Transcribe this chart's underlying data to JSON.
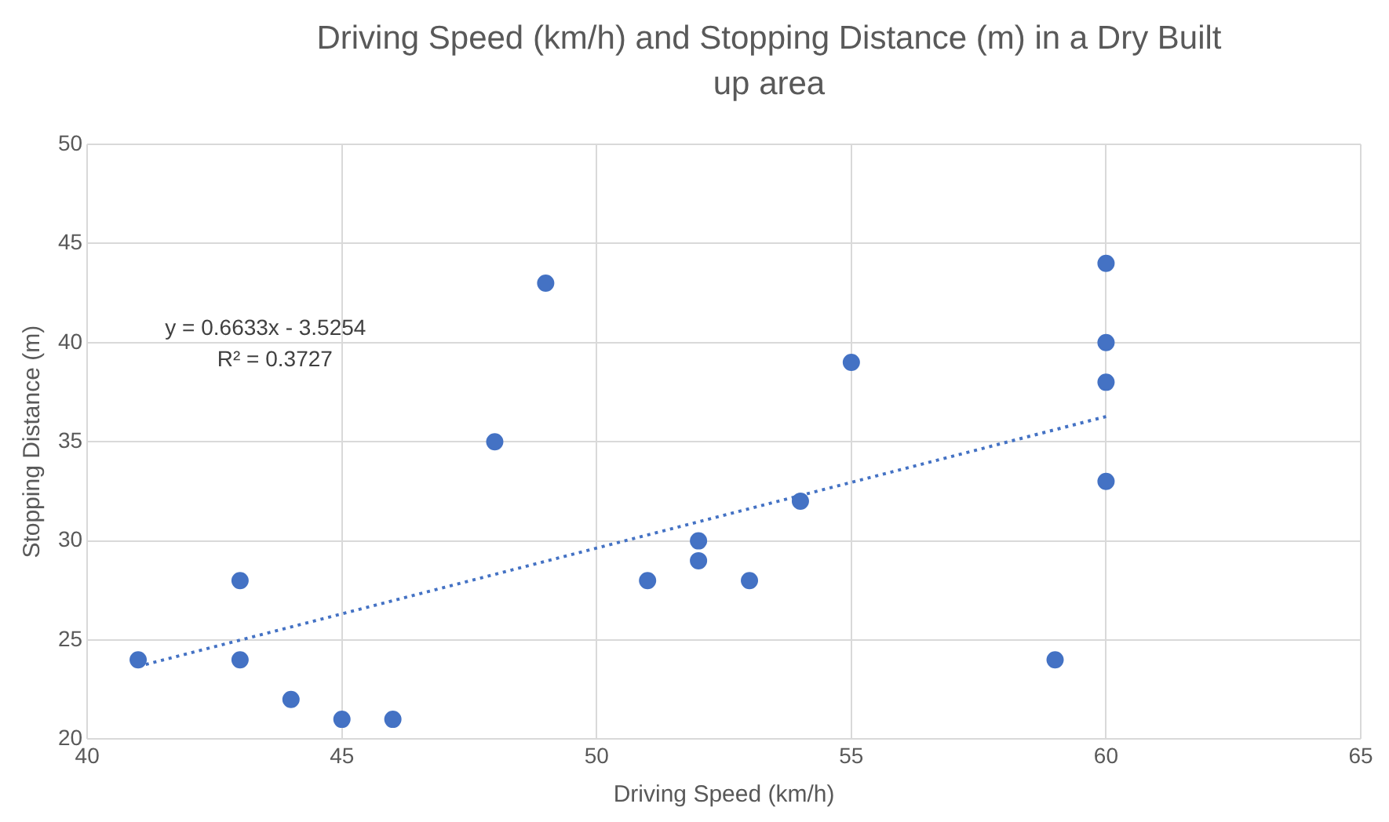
{
  "chart_data": {
    "type": "scatter",
    "title": "Driving Speed (km/h) and Stopping Distance (m) in a Dry Built up area",
    "xlabel": "Driving Speed (km/h)",
    "ylabel": "Stopping Distance (m)",
    "x": [
      41,
      43,
      43,
      44,
      45,
      46,
      48,
      49,
      51,
      52,
      52,
      53,
      54,
      55,
      59,
      60,
      60,
      60,
      60
    ],
    "series": [
      {
        "color": "#4472c4",
        "marker": "circle",
        "values": [
          24,
          28,
          24,
          22,
          21,
          21,
          35,
          43,
          28,
          30,
          29,
          28,
          32,
          39,
          24,
          44,
          40,
          38,
          33
        ]
      },
      {
        "type": "line",
        "color": "#4472c4",
        "line_style": "dotted",
        "marker": "none",
        "x": [
          41,
          60
        ],
        "values": [
          23.67,
          36.27
        ]
      }
    ],
    "annotations": [
      "y = 0.6633x - 3.5254",
      "R² = 0.3727"
    ],
    "xlim": [
      40,
      65
    ],
    "xticks": [
      40,
      45,
      50,
      55,
      60,
      65
    ],
    "ylim": [
      20,
      50
    ],
    "yticks": [
      20,
      25,
      30,
      35,
      40,
      45,
      50
    ],
    "grid": true,
    "legend": false
  }
}
